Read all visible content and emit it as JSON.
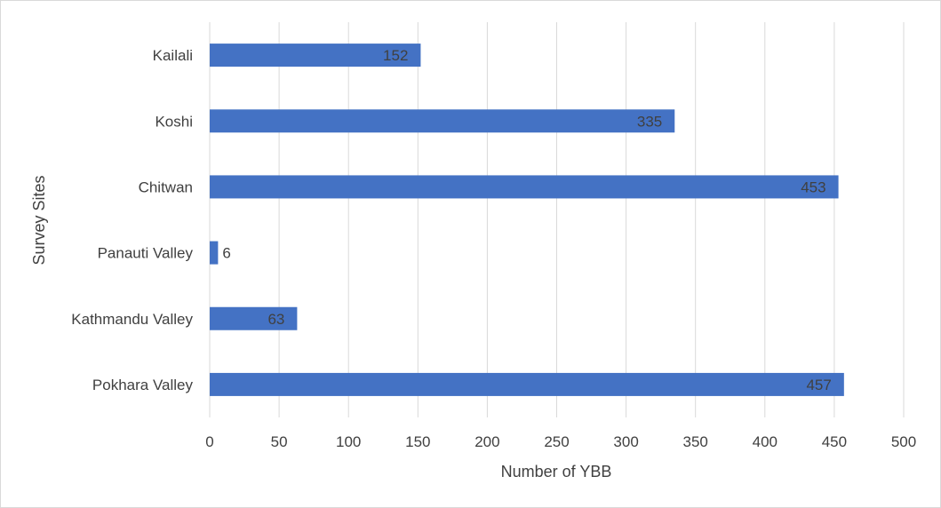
{
  "chart_data": {
    "type": "bar",
    "orientation": "horizontal",
    "categories": [
      "Kailali",
      "Koshi",
      "Chitwan",
      "Panauti Valley",
      "Kathmandu Valley",
      "Pokhara Valley"
    ],
    "values": [
      152,
      335,
      453,
      6,
      63,
      457
    ],
    "data_labels": [
      "152",
      "335",
      "453",
      "6",
      "63",
      "457"
    ],
    "xlabel": "Number of YBB",
    "ylabel": "Survey Sites",
    "xlim": [
      0,
      500
    ],
    "x_ticks": [
      "0",
      "50",
      "100",
      "150",
      "200",
      "250",
      "300",
      "350",
      "400",
      "450",
      "500"
    ],
    "grid": "vertical",
    "legend": "none",
    "bar_color": "#4472c4",
    "label_color": "#404040",
    "grid_color": "#d9d9d9"
  }
}
